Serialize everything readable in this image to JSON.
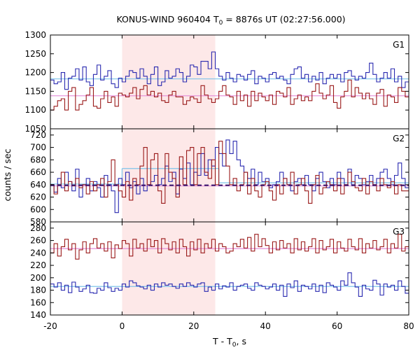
{
  "chart_data": {
    "type": "line",
    "title": {
      "prefix": "KONUS-WIND 960404 T",
      "sub": "0",
      "suffix": " = 8876s UT (02:27:56.000)"
    },
    "xlabel": {
      "prefix": "T - T",
      "sub": "0",
      "suffix": ", s"
    },
    "ylabel": "counts / sec",
    "xlim": [
      -20,
      80
    ],
    "x_ticks": [
      -20,
      0,
      20,
      40,
      60,
      80
    ],
    "shaded_interval": {
      "x": [
        0,
        26
      ],
      "color": "#fde8e8"
    },
    "series_colors": {
      "blue": "#2a2ab0",
      "red": "#9a1a1a",
      "blue_bg": "#7fc4ea",
      "red_bg": "#e48bd8",
      "dashed": "#3c1a6e"
    },
    "panels": [
      {
        "label": "G1",
        "ylim": [
          1050,
          1300
        ],
        "y_ticks": [
          1050,
          1100,
          1150,
          1200,
          1250,
          1300
        ],
        "show_bottom_tick": true,
        "background_levels": [
          {
            "series": "blue",
            "value": 1183,
            "x_start": -20,
            "x_end": 80
          },
          {
            "series": "red",
            "value": 1138,
            "x_start": -20,
            "x_end": 80
          }
        ],
        "series": [
          {
            "color": "blue",
            "x_start": -20,
            "bin": 1.0,
            "values": [
              1180,
              1170,
              1175,
              1200,
              1155,
              1185,
              1190,
              1210,
              1180,
              1215,
              1175,
              1165,
              1195,
              1220,
              1180,
              1190,
              1205,
              1170,
              1160,
              1185,
              1175,
              1190,
              1205,
              1200,
              1185,
              1210,
              1190,
              1170,
              1195,
              1215,
              1165,
              1175,
              1205,
              1185,
              1190,
              1210,
              1200,
              1175,
              1190,
              1220,
              1215,
              1195,
              1230,
              1230,
              1210,
              1255,
              1210,
              1190,
              1180,
              1200,
              1185,
              1175,
              1195,
              1190,
              1180,
              1195,
              1205,
              1170,
              1190,
              1185,
              1175,
              1195,
              1200,
              1185,
              1190,
              1180,
              1170,
              1195,
              1210,
              1215,
              1185,
              1195,
              1175,
              1190,
              1180,
              1200,
              1170,
              1185,
              1195,
              1185,
              1195,
              1175,
              1200,
              1205,
              1190,
              1180,
              1190,
              1185,
              1200,
              1225,
              1195,
              1175,
              1185,
              1200,
              1185,
              1210,
              1175,
              1190,
              1160,
              1175
            ]
          },
          {
            "color": "red",
            "x_start": -20,
            "bin": 1.0,
            "values": [
              1100,
              1110,
              1125,
              1130,
              1100,
              1150,
              1160,
              1100,
              1115,
              1125,
              1140,
              1160,
              1110,
              1105,
              1130,
              1150,
              1120,
              1135,
              1110,
              1145,
              1140,
              1135,
              1145,
              1160,
              1130,
              1155,
              1165,
              1140,
              1150,
              1135,
              1145,
              1125,
              1120,
              1140,
              1150,
              1135,
              1135,
              1115,
              1125,
              1135,
              1130,
              1120,
              1165,
              1140,
              1130,
              1120,
              1130,
              1150,
              1165,
              1140,
              1135,
              1115,
              1150,
              1125,
              1140,
              1110,
              1150,
              1125,
              1145,
              1135,
              1125,
              1140,
              1115,
              1150,
              1145,
              1135,
              1160,
              1115,
              1130,
              1140,
              1125,
              1135,
              1125,
              1150,
              1170,
              1145,
              1130,
              1140,
              1165,
              1120,
              1105,
              1135,
              1150,
              1180,
              1135,
              1160,
              1145,
              1130,
              1145,
              1130,
              1115,
              1145,
              1155,
              1110,
              1140,
              1135,
              1120,
              1160,
              1150,
              1135
            ]
          }
        ]
      },
      {
        "label": "G2",
        "ylim": [
          580,
          730
        ],
        "y_ticks": [
          580,
          600,
          620,
          640,
          660,
          680,
          700,
          720
        ],
        "show_bottom_tick": true,
        "background_levels": [
          {
            "series": "blue",
            "value": 641,
            "x_start": -20,
            "x_end": 0
          },
          {
            "series": "blue",
            "value": 666,
            "x_start": 0,
            "x_end": 27
          },
          {
            "series": "blue",
            "value": 643,
            "x_start": 27,
            "x_end": 80
          },
          {
            "series": "red",
            "value": 638,
            "x_start": -20,
            "x_end": 80
          }
        ],
        "dashed_level": {
          "value": 639,
          "x_start": -20,
          "x_end": 80
        },
        "series": [
          {
            "color": "blue",
            "x_start": -20,
            "bin": 1.0,
            "values": [
              640,
              628,
              650,
              635,
              660,
              645,
              630,
              665,
              620,
              640,
              650,
              630,
              645,
              635,
              620,
              655,
              640,
              630,
              595,
              650,
              640,
              660,
              635,
              645,
              625,
              650,
              630,
              640,
              645,
              655,
              640,
              650,
              670,
              645,
              660,
              625,
              665,
              650,
              675,
              640,
              660,
              655,
              690,
              655,
              680,
              670,
              700,
              690,
              670,
              712,
              690,
              710,
              680,
              670,
              660,
              650,
              665,
              640,
              660,
              645,
              650,
              635,
              640,
              645,
              660,
              650,
              640,
              630,
              645,
              650,
              640,
              655,
              640,
              630,
              650,
              660,
              645,
              635,
              650,
              640,
              660,
              650,
              640,
              665,
              640,
              655,
              650,
              640,
              645,
              655,
              640,
              650,
              660,
              665,
              650,
              640,
              655,
              675,
              650,
              635
            ]
          },
          {
            "color": "red",
            "x_start": -20,
            "bin": 1.0,
            "values": [
              640,
              625,
              640,
              660,
              630,
              645,
              638,
              650,
              635,
              640,
              625,
              645,
              630,
              640,
              650,
              620,
              645,
              680,
              640,
              630,
              620,
              645,
              615,
              650,
              640,
              670,
              700,
              640,
              680,
              690,
              630,
              610,
              690,
              660,
              650,
              620,
              685,
              640,
              695,
              700,
              640,
              690,
              700,
              660,
              650,
              680,
              640,
              710,
              690,
              670,
              640,
              650,
              630,
              640,
              660,
              625,
              650,
              630,
              620,
              640,
              645,
              630,
              615,
              640,
              625,
              650,
              640,
              660,
              625,
              640,
              650,
              630,
              610,
              640,
              655,
              625,
              635,
              645,
              640,
              630,
              650,
              625,
              640,
              660,
              645,
              635,
              630,
              650,
              625,
              645,
              640,
              630,
              650,
              640,
              635,
              645,
              625,
              640,
              630,
              630
            ]
          }
        ]
      },
      {
        "label": "G3",
        "ylim": [
          140,
          290
        ],
        "y_ticks": [
          140,
          160,
          180,
          200,
          220,
          240,
          260,
          280
        ],
        "show_bottom_tick": true,
        "background_levels": [
          {
            "series": "blue",
            "value": 186,
            "x_start": -20,
            "x_end": 80
          },
          {
            "series": "red",
            "value": 247,
            "x_start": -20,
            "x_end": 80
          }
        ],
        "series": [
          {
            "color": "blue",
            "x_start": -20,
            "bin": 1.0,
            "values": [
              190,
              185,
              192,
              180,
              188,
              176,
              193,
              185,
              178,
              182,
              188,
              176,
              175,
              183,
              180,
              192,
              184,
              178,
              183,
              180,
              190,
              185,
              195,
              192,
              187,
              185,
              182,
              188,
              180,
              190,
              185,
              192,
              188,
              190,
              186,
              183,
              190,
              186,
              192,
              188,
              185,
              190,
              192,
              178,
              185,
              180,
              190,
              182,
              187,
              185,
              192,
              180,
              186,
              188,
              190,
              183,
              180,
              192,
              188,
              186,
              182,
              185,
              190,
              180,
              188,
              170,
              190,
              184,
              195,
              178,
              188,
              186,
              182,
              190,
              178,
              188,
              176,
              192,
              188,
              185,
              180,
              195,
              188,
              208,
              192,
              185,
              170,
              188,
              182,
              180,
              196,
              190,
              172,
              190,
              185,
              188,
              180,
              195,
              186,
              175
            ]
          },
          {
            "color": "red",
            "x_start": -20,
            "bin": 1.0,
            "values": [
              240,
              255,
              235,
              250,
              262,
              245,
              255,
              230,
              245,
              258,
              240,
              255,
              263,
              248,
              255,
              243,
              258,
              232,
              253,
              247,
              260,
              255,
              235,
              262,
              248,
              255,
              243,
              262,
              250,
              260,
              240,
              263,
              255,
              245,
              258,
              240,
              262,
              250,
              235,
              258,
              245,
              262,
              240,
              255,
              248,
              262,
              243,
              255,
              250,
              240,
              243,
              255,
              250,
              262,
              248,
              265,
              243,
              270,
              250,
              263,
              252,
              240,
              258,
              245,
              260,
              248,
              255,
              240,
              263,
              245,
              258,
              243,
              250,
              263,
              240,
              260,
              245,
              250,
              262,
              240,
              258,
              248,
              243,
              262,
              250,
              245,
              263,
              240,
              255,
              248,
              260,
              245,
              250,
              262,
              240,
              255,
              248,
              270,
              243,
              250
            ]
          }
        ]
      }
    ]
  }
}
